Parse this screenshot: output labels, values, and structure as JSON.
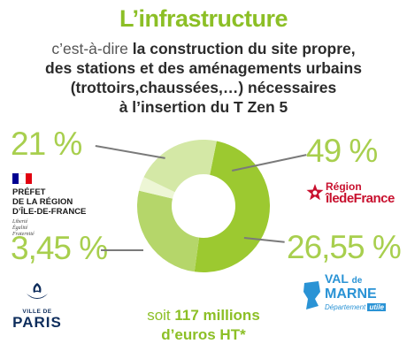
{
  "title": "L’infrastructure",
  "subtitle": {
    "intro": "c’est-à-dire ",
    "line1_bold": "la construction du site propre,",
    "line2": "des stations et des aménagements urbains",
    "line3": "(trottoirs,chaussées,…) nécessaires",
    "line4": "à l’insertion du T Zen 5"
  },
  "total": {
    "prefix": "soit ",
    "amount": "117 millions",
    "line2": "d’euros HT*"
  },
  "colors": {
    "title_green": "#8cbf26",
    "segment_region": "#9cc930",
    "segment_valdemarne": "#b5d66a",
    "segment_paris": "#edf6d5",
    "segment_prefet": "#d4e8a6",
    "flag_blue": "#000091",
    "flag_red": "#e1000f",
    "region_red": "#c8102e",
    "vdm_blue": "#2a93d5",
    "paris_navy": "#0e2d5c"
  },
  "chart_data": {
    "type": "pie",
    "labels": [
      "49 %",
      "26,55 %",
      "3,45 %",
      "21 %"
    ],
    "values": [
      49,
      26.55,
      3.45,
      21
    ],
    "funders": [
      "Région Île-de-France",
      "Val de Marne Département utile",
      "Ville de Paris",
      "Préfet de la Région d’Île-de-France"
    ]
  },
  "logos": {
    "prefet": {
      "lines": [
        "PRÉFET",
        "DE LA RÉGION",
        "D’ÎLE-DE-FRANCE"
      ],
      "motto": [
        "Liberté",
        "Égalité",
        "Fraternité"
      ]
    },
    "region": {
      "top": "Région",
      "bottom": "îledeFrance",
      "icon": "star-icon"
    },
    "paris": {
      "small": "VILLE DE",
      "big": "PARIS",
      "icon": "ship-icon"
    },
    "valdemarne": {
      "line1": "VAL",
      "line1b": "de",
      "line2": "MARNE",
      "tag": "Département",
      "tag_bold": "utile"
    }
  }
}
